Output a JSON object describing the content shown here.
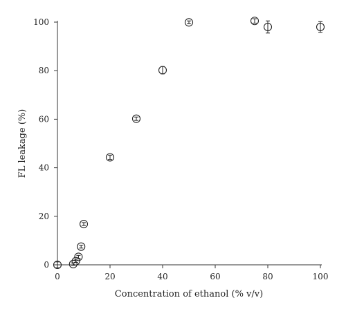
{
  "chart_data": {
    "type": "scatter",
    "xlabel": "Concentration of ethanol (% v/v)",
    "ylabel": "FL leakage (%)",
    "xlim": [
      0,
      100
    ],
    "ylim": [
      0,
      100
    ],
    "xticks": [
      "0",
      "20",
      "40",
      "60",
      "80",
      "100"
    ],
    "yticks": [
      "0",
      "20",
      "40",
      "60",
      "80",
      "100"
    ],
    "grid": false,
    "marker": "open-circle",
    "points": [
      {
        "x": 0,
        "y": 0,
        "err": 1.2
      },
      {
        "x": 6,
        "y": 0.3,
        "err": 0.5
      },
      {
        "x": 7,
        "y": 1.5,
        "err": 0.5
      },
      {
        "x": 8,
        "y": 3.3,
        "err": 0.6
      },
      {
        "x": 9,
        "y": 7.5,
        "err": 0.6
      },
      {
        "x": 10,
        "y": 16.8,
        "err": 0.6
      },
      {
        "x": 20,
        "y": 44.3,
        "err": 0.9
      },
      {
        "x": 30,
        "y": 60.2,
        "err": 0.7
      },
      {
        "x": 40,
        "y": 80.2,
        "err": 1.5
      },
      {
        "x": 50,
        "y": 99.9,
        "err": 0.6
      },
      {
        "x": 75,
        "y": 100.5,
        "err": 0.9
      },
      {
        "x": 80,
        "y": 98,
        "err": 2.5
      },
      {
        "x": 100,
        "y": 98,
        "err": 2.2
      }
    ]
  }
}
